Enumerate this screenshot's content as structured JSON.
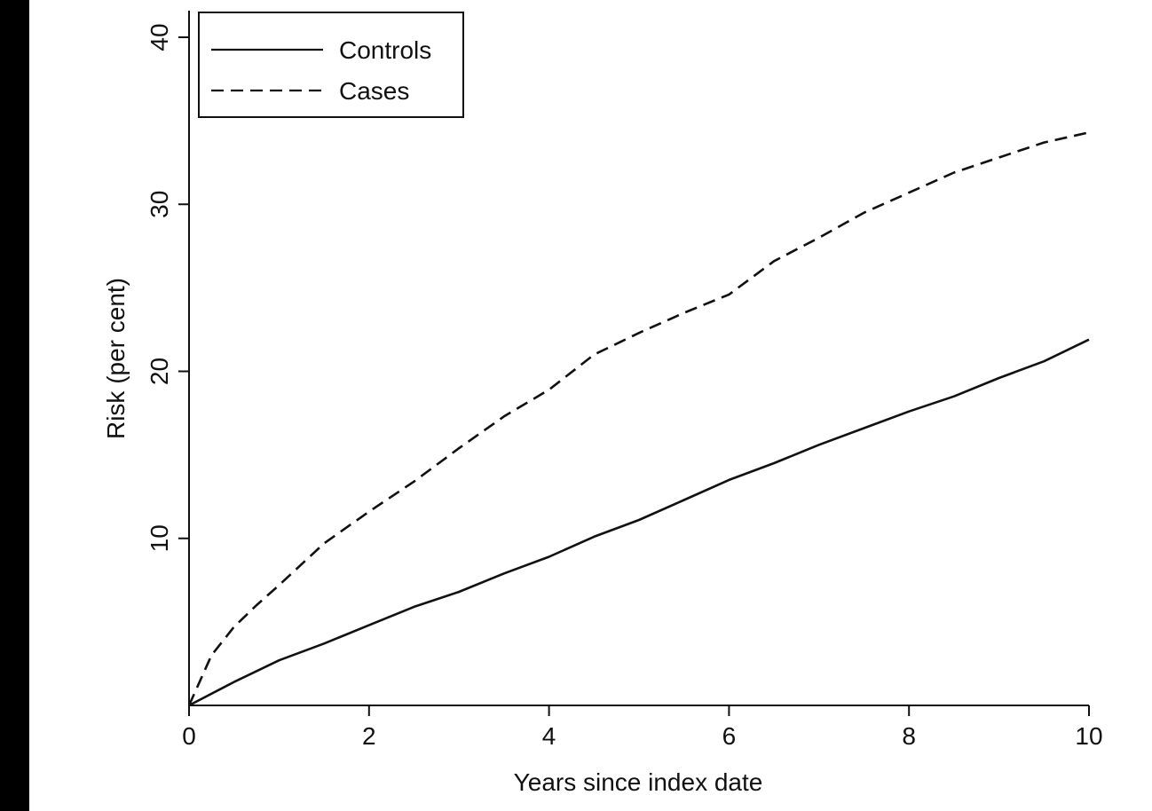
{
  "chart_data": {
    "type": "line",
    "title": "",
    "xlabel": "Years since index date",
    "ylabel": "Risk (per cent)",
    "xlim": [
      0,
      10
    ],
    "ylim": [
      0,
      40
    ],
    "x_ticks": [
      0,
      2,
      4,
      6,
      8,
      10
    ],
    "x_tick_labels": [
      "0",
      "2",
      "4",
      "6",
      "8",
      "10"
    ],
    "y_ticks": [
      10,
      20,
      30,
      40
    ],
    "y_tick_labels": [
      "10",
      "20",
      "30",
      "40"
    ],
    "grid": false,
    "legend_position": "top-left",
    "series": [
      {
        "name": "Controls",
        "style": "solid",
        "color": "#111111",
        "x": [
          0,
          0.5,
          1,
          1.5,
          2,
          2.5,
          3,
          3.5,
          4,
          4.5,
          5,
          5.5,
          6,
          6.5,
          7,
          7.5,
          8,
          8.5,
          9,
          9.5,
          10
        ],
        "y": [
          0,
          1.4,
          2.7,
          3.7,
          4.8,
          5.9,
          6.8,
          7.9,
          8.9,
          10.1,
          11.1,
          12.3,
          13.5,
          14.5,
          15.6,
          16.6,
          17.6,
          18.5,
          19.6,
          20.6,
          21.9
        ]
      },
      {
        "name": "Cases",
        "style": "dashed",
        "color": "#111111",
        "x": [
          0,
          0.25,
          0.5,
          0.75,
          1,
          1.5,
          2,
          2.5,
          3,
          3.5,
          4,
          4.5,
          5,
          5.5,
          6,
          6.5,
          7,
          7.5,
          8,
          8.5,
          9,
          9.5,
          10
        ],
        "y": [
          0,
          3.0,
          4.7,
          6.0,
          7.2,
          9.7,
          11.6,
          13.4,
          15.4,
          17.3,
          18.9,
          21.0,
          22.3,
          23.5,
          24.6,
          26.6,
          28.0,
          29.5,
          30.7,
          31.9,
          32.8,
          33.7,
          34.3
        ]
      }
    ]
  },
  "legend": {
    "items": [
      {
        "label": "Controls",
        "style": "solid"
      },
      {
        "label": "Cases",
        "style": "dashed"
      }
    ]
  },
  "colors": {
    "background": "#000000",
    "plot_background": "#ffffff",
    "ink": "#111111"
  }
}
